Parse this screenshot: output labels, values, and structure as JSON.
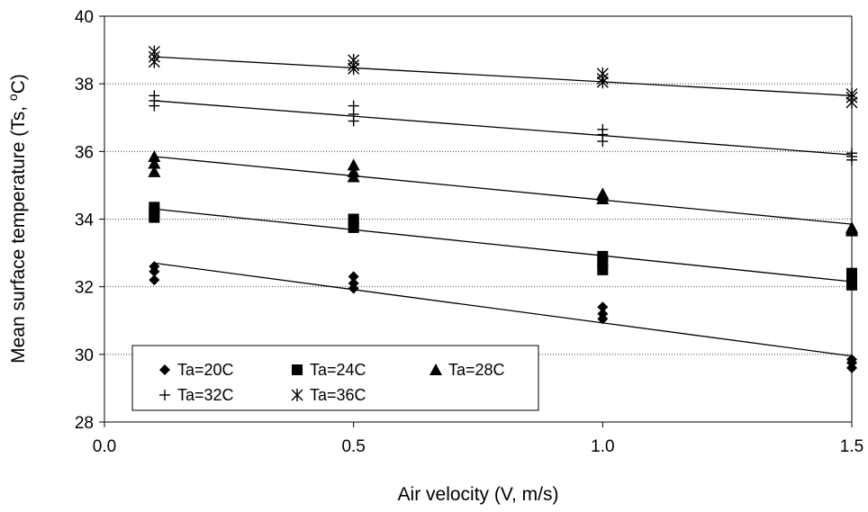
{
  "chart_data": {
    "type": "scatter",
    "title": "",
    "xlabel": "Air velocity (V, m/s)",
    "ylabel_main": "Mean surface temperature (Ts, ",
    "ylabel_sup": "o",
    "ylabel_end": "C)",
    "xlim": [
      0.0,
      1.5
    ],
    "ylim": [
      28,
      40
    ],
    "x_ticks": [
      "0.0",
      "0.5",
      "1.0",
      "1.5"
    ],
    "x_tick_values": [
      0,
      0.5,
      1.0,
      1.5
    ],
    "y_ticks": [
      "28",
      "30",
      "32",
      "34",
      "36",
      "38",
      "40"
    ],
    "y_tick_values": [
      28,
      30,
      32,
      34,
      36,
      38,
      40
    ],
    "gridlines_y": [
      30,
      32,
      34,
      36,
      38
    ],
    "grid": "horizontal dotted",
    "legend_position": "bottom-left",
    "series": [
      {
        "name": "Ta=20C",
        "marker": "diamond",
        "points": [
          [
            0.1,
            32.2
          ],
          [
            0.1,
            32.45
          ],
          [
            0.1,
            32.6
          ],
          [
            0.5,
            31.95
          ],
          [
            0.5,
            32.1
          ],
          [
            0.5,
            32.3
          ],
          [
            1.0,
            31.05
          ],
          [
            1.0,
            31.2
          ],
          [
            1.0,
            31.4
          ],
          [
            1.5,
            29.6
          ],
          [
            1.5,
            29.75
          ],
          [
            1.5,
            29.85
          ]
        ],
        "fit": [
          [
            0.1,
            32.7
          ],
          [
            1.5,
            29.95
          ]
        ]
      },
      {
        "name": "Ta=24C",
        "marker": "square",
        "points": [
          [
            0.1,
            34.05
          ],
          [
            0.1,
            34.2
          ],
          [
            0.1,
            34.35
          ],
          [
            0.5,
            33.75
          ],
          [
            0.5,
            33.9
          ],
          [
            0.5,
            34.0
          ],
          [
            1.0,
            32.5
          ],
          [
            1.0,
            32.7
          ],
          [
            1.0,
            32.9
          ],
          [
            1.5,
            32.05
          ],
          [
            1.5,
            32.2
          ],
          [
            1.5,
            32.4
          ]
        ],
        "fit": [
          [
            0.1,
            34.3
          ],
          [
            1.5,
            32.15
          ]
        ]
      },
      {
        "name": "Ta=28C",
        "marker": "triangle",
        "points": [
          [
            0.1,
            35.4
          ],
          [
            0.1,
            35.65
          ],
          [
            0.1,
            35.85
          ],
          [
            0.5,
            35.25
          ],
          [
            0.5,
            35.4
          ],
          [
            0.5,
            35.6
          ],
          [
            1.0,
            34.6
          ],
          [
            1.0,
            34.7
          ],
          [
            1.0,
            34.75
          ],
          [
            1.5,
            33.65
          ],
          [
            1.5,
            33.7
          ],
          [
            1.5,
            33.75
          ]
        ],
        "fit": [
          [
            0.1,
            35.85
          ],
          [
            1.5,
            33.85
          ]
        ]
      },
      {
        "name": "Ta=32C",
        "marker": "plus",
        "points": [
          [
            0.1,
            37.35
          ],
          [
            0.1,
            37.5
          ],
          [
            0.1,
            37.65
          ],
          [
            0.5,
            36.9
          ],
          [
            0.5,
            37.1
          ],
          [
            0.5,
            37.35
          ],
          [
            1.0,
            36.3
          ],
          [
            1.0,
            36.5
          ],
          [
            1.0,
            36.65
          ],
          [
            1.5,
            35.75
          ],
          [
            1.5,
            35.85
          ],
          [
            1.5,
            35.95
          ]
        ],
        "fit": [
          [
            0.1,
            37.5
          ],
          [
            1.5,
            35.9
          ]
        ]
      },
      {
        "name": "Ta=36C",
        "marker": "asterisk",
        "points": [
          [
            0.1,
            38.65
          ],
          [
            0.1,
            38.8
          ],
          [
            0.1,
            38.95
          ],
          [
            0.5,
            38.45
          ],
          [
            0.5,
            38.55
          ],
          [
            0.5,
            38.7
          ],
          [
            1.0,
            38.05
          ],
          [
            1.0,
            38.15
          ],
          [
            1.0,
            38.3
          ],
          [
            1.5,
            37.45
          ],
          [
            1.5,
            37.6
          ],
          [
            1.5,
            37.7
          ]
        ],
        "fit": [
          [
            0.1,
            38.8
          ],
          [
            1.5,
            37.65
          ]
        ]
      }
    ]
  }
}
